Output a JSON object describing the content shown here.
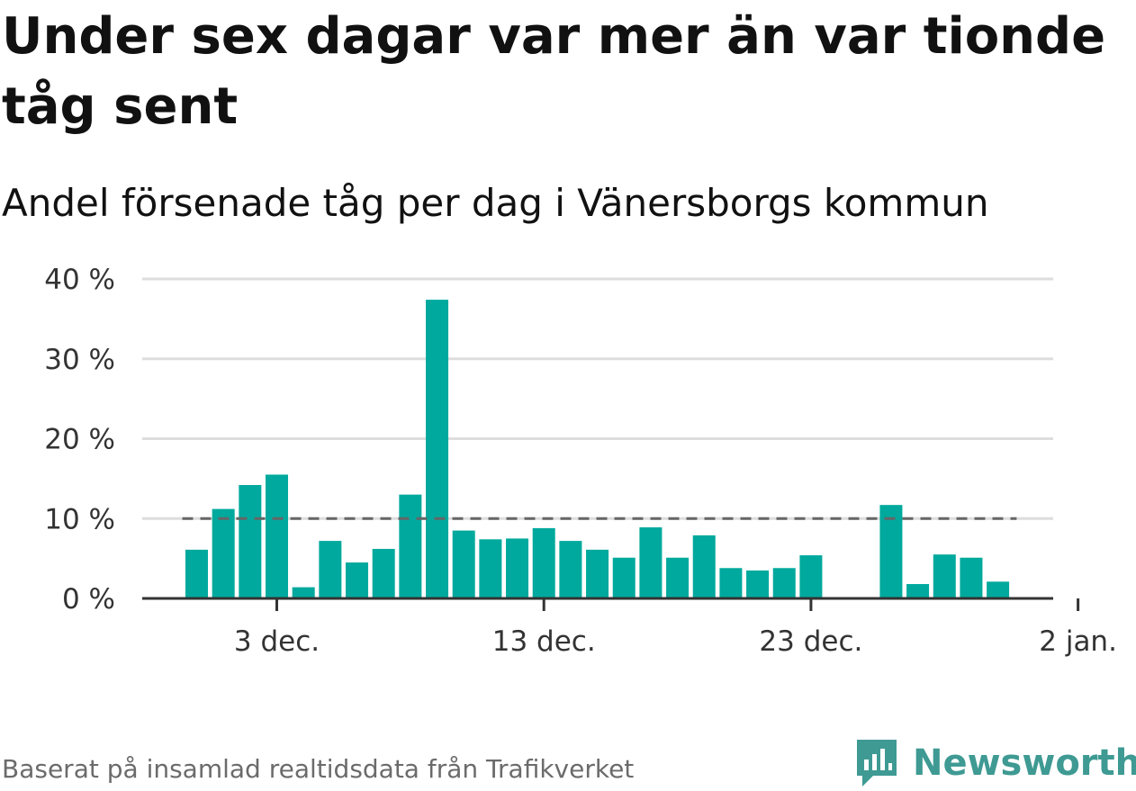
{
  "title": "Under sex dagar var mer än var tionde tåg sent",
  "subtitle": "Andel försenade tåg per dag i Vänersborgs kommun",
  "footer": "Baserat på insamlad realtidsdata från Trafikverket",
  "logo_text": "Newsworthy",
  "colors": {
    "bar": "#00a99d",
    "reference_line": "#666666",
    "grid": "#dddddd",
    "axis": "#333333",
    "logo": "#3e9a93"
  },
  "chart_data": {
    "type": "bar",
    "x": [
      "2023-11-30",
      "2023-12-01",
      "2023-12-02",
      "2023-12-03",
      "2023-12-04",
      "2023-12-05",
      "2023-12-06",
      "2023-12-07",
      "2023-12-08",
      "2023-12-09",
      "2023-12-10",
      "2023-12-11",
      "2023-12-12",
      "2023-12-13",
      "2023-12-14",
      "2023-12-15",
      "2023-12-16",
      "2023-12-17",
      "2023-12-18",
      "2023-12-19",
      "2023-12-20",
      "2023-12-21",
      "2023-12-22",
      "2023-12-23",
      "2023-12-24",
      "2023-12-25",
      "2023-12-26",
      "2023-12-27",
      "2023-12-28",
      "2023-12-29",
      "2023-12-30",
      "2023-12-31"
    ],
    "values": [
      6.1,
      11.2,
      14.2,
      15.5,
      1.4,
      7.2,
      4.5,
      6.2,
      13.0,
      37.4,
      8.5,
      7.4,
      7.5,
      8.8,
      7.2,
      6.1,
      5.1,
      8.9,
      5.1,
      7.9,
      3.8,
      3.5,
      3.8,
      5.4,
      null,
      null,
      11.7,
      1.8,
      5.5,
      5.1,
      2.1,
      null
    ],
    "ylim": [
      0,
      40
    ],
    "yticks": [
      0,
      10,
      20,
      30,
      40
    ],
    "ytick_labels": [
      "0 %",
      "10 %",
      "20 %",
      "30 %",
      "40 %"
    ],
    "xticks": [
      "2023-12-03",
      "2023-12-13",
      "2023-12-23",
      "2024-01-02"
    ],
    "xtick_labels": [
      "3 dec.",
      "13 dec.",
      "23 dec.",
      "2 jan."
    ],
    "reference_line": {
      "value": 10,
      "style": "dashed"
    },
    "grid": true,
    "legend": "none"
  }
}
